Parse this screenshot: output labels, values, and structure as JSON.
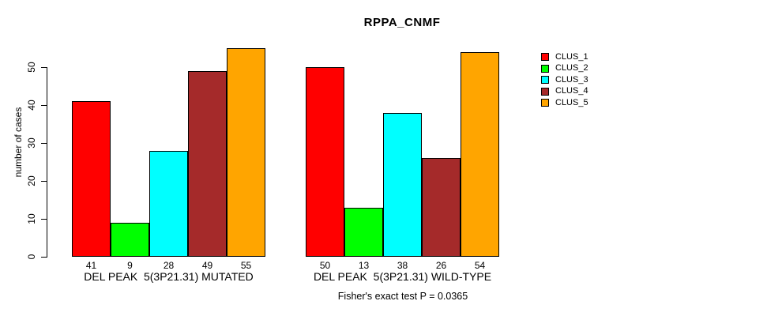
{
  "title": "RPPA_CNMF",
  "footer": "Fisher's exact test P = 0.0365",
  "chart_data": {
    "type": "bar",
    "title": "RPPA_CNMF",
    "xlabel": "",
    "ylabel": "number of cases",
    "ylim": [
      0,
      55
    ],
    "yticks": [
      0,
      10,
      20,
      30,
      40,
      50
    ],
    "grid": false,
    "legend_position": "right",
    "categories": [
      "DEL PEAK  5(3P21.31) MUTATED",
      "DEL PEAK  5(3P21.31) WILD-TYPE"
    ],
    "series": [
      {
        "name": "CLUS_1",
        "color": "#FF0000",
        "values": [
          41,
          50
        ]
      },
      {
        "name": "CLUS_2",
        "color": "#00FF00",
        "values": [
          9,
          13
        ]
      },
      {
        "name": "CLUS_3",
        "color": "#00FFFF",
        "values": [
          28,
          38
        ]
      },
      {
        "name": "CLUS_4",
        "color": "#A52A2A",
        "values": [
          49,
          26
        ]
      },
      {
        "name": "CLUS_5",
        "color": "#FFA500",
        "values": [
          55,
          54
        ]
      }
    ],
    "bar_value_labels_shown": true,
    "annotation": "Fisher's exact test P = 0.0365",
    "axis_color": "#000000",
    "background_color": "#FFFFFF"
  }
}
